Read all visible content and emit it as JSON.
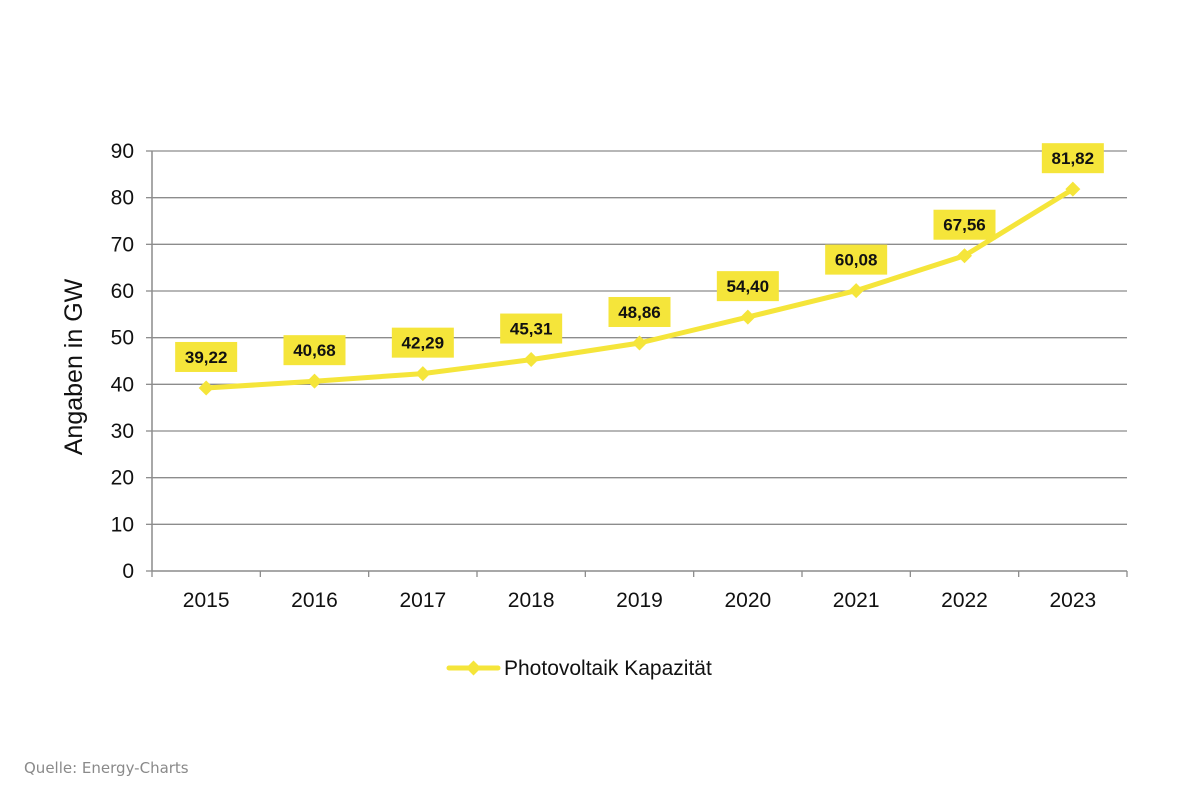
{
  "chart_data": {
    "type": "line",
    "categories": [
      "2015",
      "2016",
      "2017",
      "2018",
      "2019",
      "2020",
      "2021",
      "2022",
      "2023"
    ],
    "series": [
      {
        "name": "Photovoltaik Kapazität",
        "values": [
          39.22,
          40.68,
          42.29,
          45.31,
          48.86,
          54.4,
          60.08,
          67.56,
          81.82
        ],
        "labels": [
          "39,22",
          "40,68",
          "42,29",
          "45,31",
          "48,86",
          "54,40",
          "60,08",
          "67,56",
          "81,82"
        ],
        "color": "#f5e53a"
      }
    ],
    "title": "",
    "xlabel": "",
    "ylabel": "Angaben in GW",
    "ylim": [
      0,
      90
    ],
    "yticks": [
      "0",
      "10",
      "20",
      "30",
      "40",
      "50",
      "60",
      "70",
      "80",
      "90"
    ],
    "grid": true,
    "legend_position": "bottom",
    "marker": "diamond",
    "gridline_color": "#8c8c8c",
    "label_background": "#f5e53a"
  },
  "source": "Quelle: Energy-Charts"
}
